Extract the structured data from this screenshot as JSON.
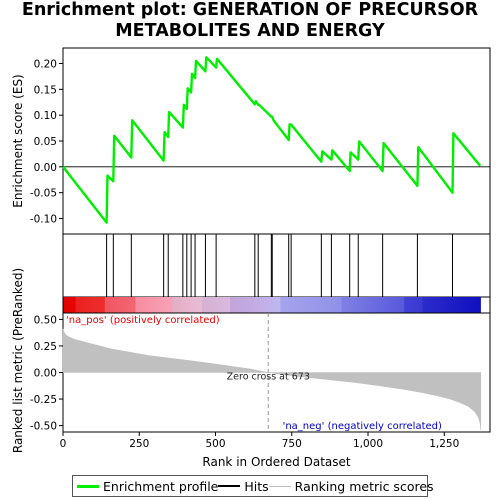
{
  "title_lines": [
    "Enrichment plot: GENERATION OF PRECURSOR",
    "METABOLITES AND ENERGY"
  ],
  "legend": {
    "items": [
      {
        "label": "Enrichment profile",
        "color": "#00ee00"
      },
      {
        "label": "Hits",
        "color": "#000000"
      },
      {
        "label": "Ranking metric scores",
        "color": "#c0c0c0"
      }
    ]
  },
  "colors": {
    "enrichment": "#00ee00",
    "hits": "#000000",
    "metric": "#c0c0c0",
    "pos_label": "#ee0000",
    "neg_label": "#0000cc",
    "zero_line": "#999999"
  },
  "chart_data": [
    {
      "type": "line",
      "name": "enrichment_score",
      "ylabel": "Enrichment score (ES)",
      "xlim": [
        0,
        1400
      ],
      "ylim": [
        -0.13,
        0.23
      ],
      "y_ticks": [
        -0.1,
        -0.05,
        0.0,
        0.05,
        0.1,
        0.15,
        0.2
      ],
      "y_tick_labels": [
        "-0.10",
        "-0.05",
        "0.00",
        "0.05",
        "0.10",
        "0.15",
        "0.20"
      ],
      "points": [
        [
          0,
          0.0
        ],
        [
          143,
          -0.108
        ],
        [
          146,
          -0.017
        ],
        [
          165,
          -0.028
        ],
        [
          168,
          0.06
        ],
        [
          224,
          0.018
        ],
        [
          227,
          0.09
        ],
        [
          330,
          0.012
        ],
        [
          333,
          0.067
        ],
        [
          345,
          0.058
        ],
        [
          348,
          0.106
        ],
        [
          393,
          0.076
        ],
        [
          396,
          0.12
        ],
        [
          406,
          0.112
        ],
        [
          409,
          0.152
        ],
        [
          420,
          0.144
        ],
        [
          423,
          0.18
        ],
        [
          433,
          0.172
        ],
        [
          436,
          0.205
        ],
        [
          467,
          0.185
        ],
        [
          470,
          0.212
        ],
        [
          502,
          0.192
        ],
        [
          505,
          0.209
        ],
        [
          629,
          0.121
        ],
        [
          632,
          0.127
        ],
        [
          640,
          0.12
        ],
        [
          643,
          0.12
        ],
        [
          683,
          0.097
        ],
        [
          686,
          0.097
        ],
        [
          690,
          0.09
        ],
        [
          740,
          0.052
        ],
        [
          743,
          0.082
        ],
        [
          748,
          0.082
        ],
        [
          847,
          0.01
        ],
        [
          850,
          0.03
        ],
        [
          880,
          0.014
        ],
        [
          883,
          0.032
        ],
        [
          940,
          -0.008
        ],
        [
          943,
          0.028
        ],
        [
          968,
          0.014
        ],
        [
          971,
          0.049
        ],
        [
          1048,
          -0.008
        ],
        [
          1051,
          0.046
        ],
        [
          1162,
          -0.037
        ],
        [
          1165,
          0.038
        ],
        [
          1277,
          -0.05
        ],
        [
          1280,
          0.065
        ],
        [
          1368,
          0.002
        ]
      ],
      "hits": [
        143,
        165,
        224,
        330,
        345,
        393,
        406,
        420,
        433,
        467,
        502,
        629,
        640,
        683,
        686,
        740,
        748,
        847,
        880,
        940,
        968,
        1048,
        1162,
        1277
      ]
    },
    {
      "type": "area",
      "name": "ranked_list_metric",
      "xlabel": "Rank in Ordered Dataset",
      "ylabel": "Ranked list metric (PreRanked)",
      "xlim": [
        0,
        1400
      ],
      "ylim": [
        -0.56,
        0.56
      ],
      "x_ticks": [
        0,
        250,
        500,
        750,
        1000,
        1250
      ],
      "x_tick_labels": [
        "0",
        "250",
        "500",
        "750",
        "1,000",
        "1,250"
      ],
      "y_ticks": [
        -0.5,
        -0.25,
        0.0,
        0.25,
        0.5
      ],
      "y_tick_labels": [
        "-0.50",
        "-0.25",
        "0.00",
        "0.25",
        "0.50"
      ],
      "points": [
        [
          0,
          0.41
        ],
        [
          5,
          0.37
        ],
        [
          15,
          0.34
        ],
        [
          40,
          0.31
        ],
        [
          80,
          0.28
        ],
        [
          120,
          0.25
        ],
        [
          160,
          0.22
        ],
        [
          220,
          0.19
        ],
        [
          280,
          0.16
        ],
        [
          350,
          0.135
        ],
        [
          420,
          0.11
        ],
        [
          500,
          0.08
        ],
        [
          560,
          0.055
        ],
        [
          620,
          0.03
        ],
        [
          673,
          0.0
        ],
        [
          720,
          -0.02
        ],
        [
          800,
          -0.045
        ],
        [
          880,
          -0.07
        ],
        [
          960,
          -0.095
        ],
        [
          1040,
          -0.125
        ],
        [
          1120,
          -0.16
        ],
        [
          1180,
          -0.19
        ],
        [
          1230,
          -0.22
        ],
        [
          1270,
          -0.25
        ],
        [
          1300,
          -0.28
        ],
        [
          1330,
          -0.32
        ],
        [
          1350,
          -0.37
        ],
        [
          1362,
          -0.42
        ],
        [
          1368,
          -0.48
        ],
        [
          1370,
          -0.54
        ]
      ],
      "zero_cross": 673,
      "zero_cross_label": "Zero cross at 673",
      "pos_label": "'na_pos' (positively correlated)",
      "neg_label": "'na_neg' (negatively correlated)"
    }
  ]
}
